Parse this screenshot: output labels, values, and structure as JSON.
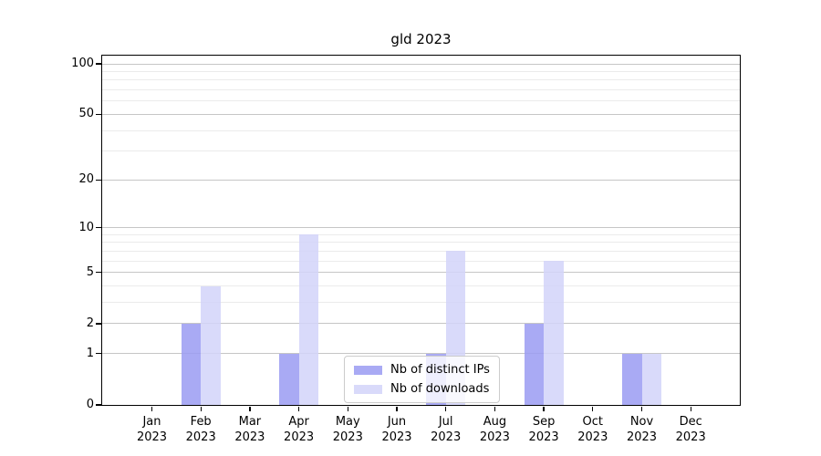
{
  "chart_data": {
    "type": "bar",
    "title": "gld 2023",
    "year": "2023",
    "categories": [
      "Jan",
      "Feb",
      "Mar",
      "Apr",
      "May",
      "Jun",
      "Jul",
      "Aug",
      "Sep",
      "Oct",
      "Nov",
      "Dec"
    ],
    "series": [
      {
        "name": "Nb of distinct IPs",
        "color": "#9a9bf2",
        "opacity": 0.85,
        "values": [
          0,
          2,
          0,
          1,
          0,
          0,
          1,
          0,
          2,
          0,
          1,
          0
        ]
      },
      {
        "name": "Nb of downloads",
        "color": "#d2d3f9",
        "opacity": 0.85,
        "values": [
          0,
          4,
          0,
          9,
          0,
          0,
          7,
          0,
          6,
          0,
          1,
          0
        ]
      }
    ],
    "xlabel": "",
    "ylabel": "",
    "yscale": "log1p",
    "ylim": [
      0,
      112
    ],
    "yticks_major": [
      0,
      1,
      2,
      5,
      10,
      20,
      50,
      100
    ],
    "yticks_minor": [
      3,
      4,
      6,
      7,
      8,
      9,
      30,
      40,
      60,
      70,
      80,
      90
    ],
    "grid": "horizontal",
    "legend_position": "lower center"
  }
}
